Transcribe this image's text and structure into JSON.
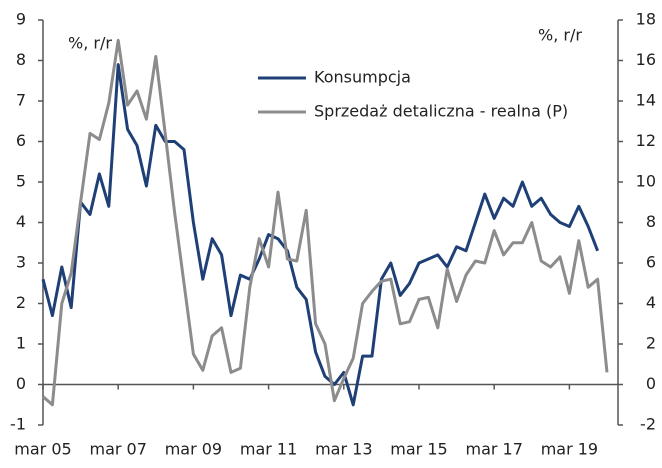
{
  "chart_data": {
    "type": "line",
    "y_label": "%, r/r",
    "y2_label": "%, r/r",
    "categories": [
      "mar 05",
      null,
      null,
      null,
      null,
      null,
      null,
      null,
      "mar 07",
      null,
      null,
      null,
      null,
      null,
      null,
      null,
      "mar 09",
      null,
      null,
      null,
      null,
      null,
      null,
      null,
      "mar 11",
      null,
      null,
      null,
      null,
      null,
      null,
      null,
      "mar 13",
      null,
      null,
      null,
      null,
      null,
      null,
      null,
      "mar 15",
      null,
      null,
      null,
      null,
      null,
      null,
      null,
      "mar 17",
      null,
      null,
      null,
      null,
      null,
      null,
      null,
      "mar 19",
      null,
      null,
      null,
      null
    ],
    "series": [
      {
        "name": "Konsumpcja",
        "color": "#1f3f77",
        "axis": "y",
        "values": [
          2.6,
          1.7,
          2.9,
          1.9,
          4.5,
          4.2,
          5.2,
          4.4,
          7.9,
          6.3,
          5.9,
          4.9,
          6.4,
          6.0,
          6.0,
          5.8,
          4.0,
          2.6,
          3.6,
          3.2,
          1.7,
          2.7,
          2.6,
          3.1,
          3.7,
          3.6,
          3.3,
          2.4,
          2.1,
          0.8,
          0.2,
          0.0,
          0.3,
          -0.5,
          0.7,
          0.7,
          2.6,
          3.0,
          2.2,
          2.5,
          3.0,
          3.1,
          3.2,
          2.9,
          3.4,
          3.3,
          4.0,
          4.7,
          4.1,
          4.6,
          4.4,
          5.0,
          4.4,
          4.6,
          4.2,
          4.0,
          3.9,
          4.4,
          3.9,
          3.3,
          null
        ]
      },
      {
        "name": "Sprzedaż detaliczna - realna (P)",
        "color": "#8c8c8c",
        "axis": "y2",
        "values": [
          -0.6,
          -1.0,
          4.0,
          5.5,
          9.0,
          12.4,
          12.1,
          13.9,
          17.0,
          13.8,
          14.5,
          13.1,
          16.2,
          12.4,
          8.5,
          5.0,
          1.5,
          0.7,
          2.4,
          2.8,
          0.6,
          0.8,
          4.8,
          7.2,
          5.8,
          9.5,
          6.2,
          6.1,
          8.6,
          3.0,
          2.0,
          -0.8,
          0.3,
          1.3,
          4.0,
          4.6,
          5.1,
          5.2,
          3.0,
          3.1,
          4.2,
          4.3,
          2.8,
          5.7,
          4.1,
          5.4,
          6.1,
          6.0,
          7.6,
          6.4,
          7.0,
          7.0,
          8.0,
          6.1,
          5.8,
          6.3,
          4.5,
          7.1,
          4.8,
          5.2,
          0.6
        ]
      }
    ],
    "ylim": [
      -1,
      9
    ],
    "yticks": [
      -1,
      0,
      1,
      2,
      3,
      4,
      5,
      6,
      7,
      8,
      9
    ],
    "y2lim": [
      -2,
      18
    ],
    "y2ticks": [
      -2,
      0,
      2,
      4,
      6,
      8,
      10,
      12,
      14,
      16,
      18
    ],
    "grid": false,
    "legend": "top"
  }
}
